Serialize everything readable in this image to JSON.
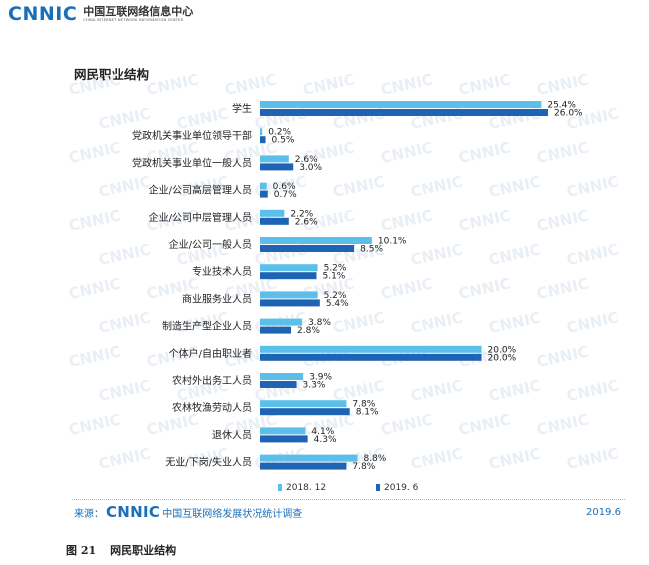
{
  "header": {
    "logo": "CNNIC",
    "org_cn": "中国互联网络信息中心",
    "org_en": "CHINA INTERNET NETWORK INFORMATION CENTER"
  },
  "watermark": "CNNIC",
  "colors": {
    "series_2018": "#5bbfea",
    "series_2019": "#1e63b4",
    "brand": "#1a6fb8"
  },
  "chart_data": {
    "type": "bar",
    "orientation": "horizontal",
    "title": "网民职业结构",
    "categories": [
      "学生",
      "党政机关事业单位领导干部",
      "党政机关事业单位一般人员",
      "企业/公司高层管理人员",
      "企业/公司中层管理人员",
      "企业/公司一般人员",
      "专业技术人员",
      "商业服务业人员",
      "制造生产型企业人员",
      "个体户/自由职业者",
      "农村外出务工人员",
      "农林牧渔劳动人员",
      "退休人员",
      "无业/下岗/失业人员"
    ],
    "series": [
      {
        "name": "2018. 12",
        "values": [
          25.4,
          0.2,
          2.6,
          0.6,
          2.2,
          10.1,
          5.2,
          5.2,
          3.8,
          20.0,
          3.9,
          7.8,
          4.1,
          8.8
        ],
        "labels": [
          "25.4%",
          "0.2%",
          "2.6%",
          "0.6%",
          "2.2%",
          "10.1%",
          "5.2%",
          "5.2%",
          "3.8%",
          "20.0%",
          "3.9%",
          "7.8%",
          "4.1%",
          "8.8%"
        ]
      },
      {
        "name": "2019. 6",
        "values": [
          26.0,
          0.5,
          3.0,
          0.7,
          2.6,
          8.5,
          5.1,
          5.4,
          2.8,
          20.0,
          3.3,
          8.1,
          4.3,
          7.8
        ],
        "labels": [
          "26.0%",
          "0.5%",
          "3.0%",
          "0.7%",
          "2.6%",
          "8.5%",
          "5.1%",
          "5.4%",
          "2.8%",
          "20.0%",
          "3.3%",
          "8.1%",
          "4.3%",
          "7.8%"
        ]
      }
    ],
    "legend": "bottom"
  },
  "footer": {
    "source_prefix": "来源：",
    "logo": "CNNIC",
    "survey": "中国互联网络发展状况统计调查",
    "date": "2019.6"
  },
  "caption": {
    "number": "图 21",
    "text": "网民职业结构"
  }
}
